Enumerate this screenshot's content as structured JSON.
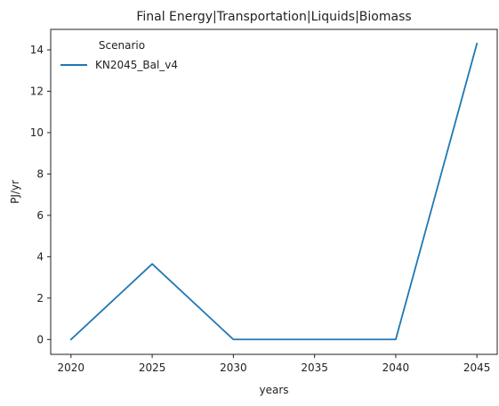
{
  "chart_data": {
    "type": "line",
    "title": "Final Energy|Transportation|Liquids|Biomass",
    "xlabel": "years",
    "ylabel": "PJ/yr",
    "x": [
      2020,
      2025,
      2030,
      2035,
      2040,
      2045
    ],
    "xticks": [
      "2020",
      "2025",
      "2030",
      "2035",
      "2040",
      "2045"
    ],
    "yticks": [
      "0",
      "2",
      "4",
      "6",
      "8",
      "10",
      "12",
      "14"
    ],
    "xlim": [
      2018.75,
      2046.25
    ],
    "ylim": [
      -0.72,
      14.99
    ],
    "grid": false,
    "legend": {
      "title": "Scenario",
      "position": "top-left"
    },
    "series": [
      {
        "name": "KN2045_Bal_v4",
        "color": "#1f77b4",
        "values": [
          0.0,
          3.65,
          0.0,
          0.0,
          0.0,
          14.3
        ]
      }
    ]
  }
}
